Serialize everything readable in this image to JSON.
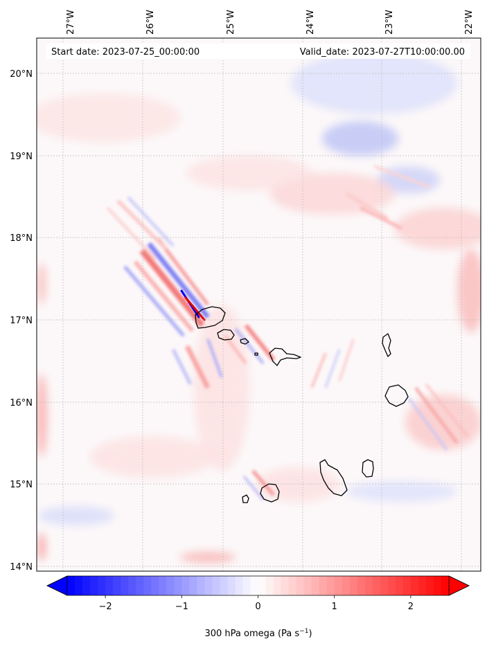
{
  "header": {
    "start_label": "Start date: 2023-07-25_00:00:00",
    "valid_label": "Valid_date: 2023-07-27T10:00:00.00"
  },
  "map": {
    "lon_range": [
      -27.3,
      -21.8
    ],
    "lat_range": [
      13.95,
      20.45
    ],
    "lon_ticks": [
      "27°W",
      "26°W",
      "25°W",
      "24°W",
      "23°W",
      "22°W"
    ],
    "lat_ticks": [
      "20°N",
      "19°N",
      "18°N",
      "17°N",
      "16°N",
      "15°N",
      "14°N"
    ],
    "gridlines": true,
    "islands": [
      "Santo Antão",
      "São Vicente",
      "Santa Luzia",
      "São Nicolau",
      "Sal",
      "Boa Vista",
      "Maio",
      "Santiago",
      "Fogo",
      "Brava"
    ]
  },
  "colorbar": {
    "ticks": [
      "−2",
      "−1",
      "0",
      "1",
      "2"
    ],
    "tick_values": [
      -2,
      -1,
      0,
      1,
      2
    ],
    "range": [
      -2.5,
      2.5
    ],
    "label_main": "300 hPa omega (Pa s",
    "label_sup": "−1",
    "label_end": ")",
    "low_color": "#0000ff",
    "mid_color": "#ffffff",
    "high_color": "#ff0000",
    "extend": "both"
  }
}
